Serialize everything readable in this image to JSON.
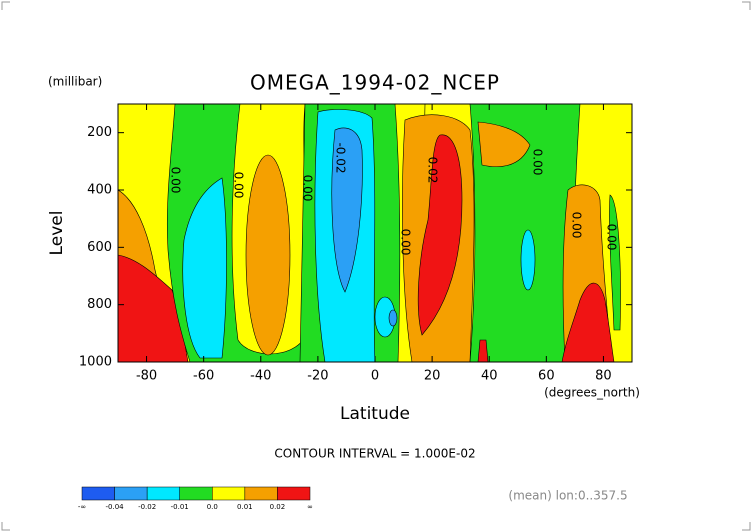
{
  "chart_data": {
    "type": "contour",
    "title": "OMEGA_1994-02_NCEP",
    "y_unit": "(millibar)",
    "y_label": "Level",
    "x_label": "Latitude",
    "x_unit": "(degrees_north)",
    "xlim": [
      -90,
      90
    ],
    "xticks": [
      -80,
      -60,
      -40,
      -20,
      0,
      20,
      40,
      60,
      80
    ],
    "ylim": [
      1000,
      100
    ],
    "yticks": [
      200,
      400,
      600,
      800,
      1000
    ],
    "contour_labels": [
      "0.00",
      "0.00",
      "0.00",
      "-0.02",
      "0.00",
      "0.02",
      "0.00",
      "0.00",
      "0.00"
    ],
    "contour_interval": "CONTOUR INTERVAL = 1.000E-02",
    "footnote": "(mean) lon:0..357.5",
    "colorbar": {
      "colors": [
        "#1e5cf0",
        "#2ba0f5",
        "#00e8ff",
        "#22dc22",
        "#ffff00",
        "#f5a000",
        "#f01414"
      ],
      "ticks": [
        "-∞",
        -0.04,
        -0.02,
        -0.01,
        {
          "value": 0,
          "label": "0.0"
        },
        0.01,
        0.02,
        "∞"
      ]
    }
  }
}
